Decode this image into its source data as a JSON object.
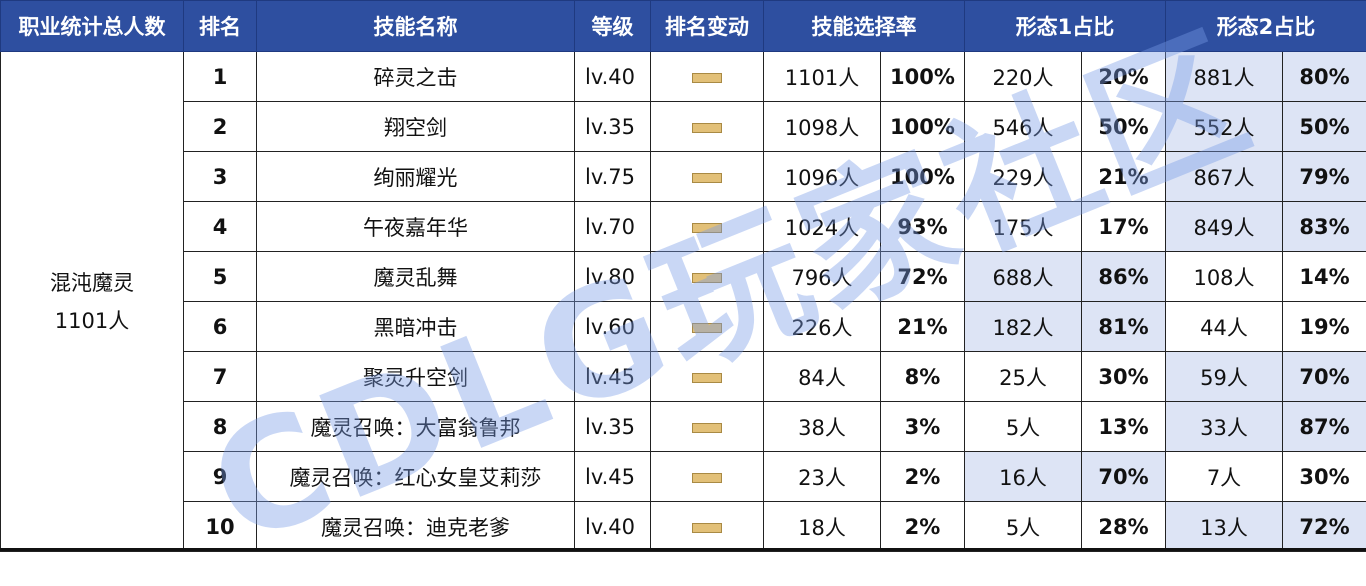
{
  "headers": {
    "job": "职业统计总人数",
    "rank": "排名",
    "skill": "技能名称",
    "level": "等级",
    "change": "排名变动",
    "select_rate": "技能选择率",
    "form1": "形态1占比",
    "form2": "形态2占比"
  },
  "job": {
    "name": "混沌魔灵",
    "total": "1101人"
  },
  "change_icon": "flat-bar-icon",
  "colors": {
    "header_bg": "#2e4fa0",
    "highlight": "#dde4f5",
    "change_bar": "#e2c078"
  },
  "rows": [
    {
      "rank": "1",
      "skill": "碎灵之击",
      "level": "lv.40",
      "sel_n": "1101人",
      "sel_p": "100%",
      "f1_n": "220人",
      "f1_p": "20%",
      "f2_n": "881人",
      "f2_p": "80%"
    },
    {
      "rank": "2",
      "skill": "翔空剑",
      "level": "lv.35",
      "sel_n": "1098人",
      "sel_p": "100%",
      "f1_n": "546人",
      "f1_p": "50%",
      "f2_n": "552人",
      "f2_p": "50%"
    },
    {
      "rank": "3",
      "skill": "绚丽耀光",
      "level": "lv.75",
      "sel_n": "1096人",
      "sel_p": "100%",
      "f1_n": "229人",
      "f1_p": "21%",
      "f2_n": "867人",
      "f2_p": "79%"
    },
    {
      "rank": "4",
      "skill": "午夜嘉年华",
      "level": "lv.70",
      "sel_n": "1024人",
      "sel_p": "93%",
      "f1_n": "175人",
      "f1_p": "17%",
      "f2_n": "849人",
      "f2_p": "83%"
    },
    {
      "rank": "5",
      "skill": "魔灵乱舞",
      "level": "lv.80",
      "sel_n": "796人",
      "sel_p": "72%",
      "f1_n": "688人",
      "f1_p": "86%",
      "f2_n": "108人",
      "f2_p": "14%"
    },
    {
      "rank": "6",
      "skill": "黑暗冲击",
      "level": "lv.60",
      "sel_n": "226人",
      "sel_p": "21%",
      "f1_n": "182人",
      "f1_p": "81%",
      "f2_n": "44人",
      "f2_p": "19%"
    },
    {
      "rank": "7",
      "skill": "聚灵升空剑",
      "level": "lv.45",
      "sel_n": "84人",
      "sel_p": "8%",
      "f1_n": "25人",
      "f1_p": "30%",
      "f2_n": "59人",
      "f2_p": "70%"
    },
    {
      "rank": "8",
      "skill": "魔灵召唤：大富翁鲁邦",
      "level": "lv.35",
      "sel_n": "38人",
      "sel_p": "3%",
      "f1_n": "5人",
      "f1_p": "13%",
      "f2_n": "33人",
      "f2_p": "87%"
    },
    {
      "rank": "9",
      "skill": "魔灵召唤：红心女皇艾莉莎",
      "level": "lv.45",
      "sel_n": "23人",
      "sel_p": "2%",
      "f1_n": "16人",
      "f1_p": "70%",
      "f2_n": "7人",
      "f2_p": "30%"
    },
    {
      "rank": "10",
      "skill": "魔灵召唤：迪克老爹",
      "level": "lv.40",
      "sel_n": "18人",
      "sel_p": "2%",
      "f1_n": "5人",
      "f1_p": "28%",
      "f2_n": "13人",
      "f2_p": "72%"
    }
  ],
  "watermark": "CDLG玩家社区"
}
